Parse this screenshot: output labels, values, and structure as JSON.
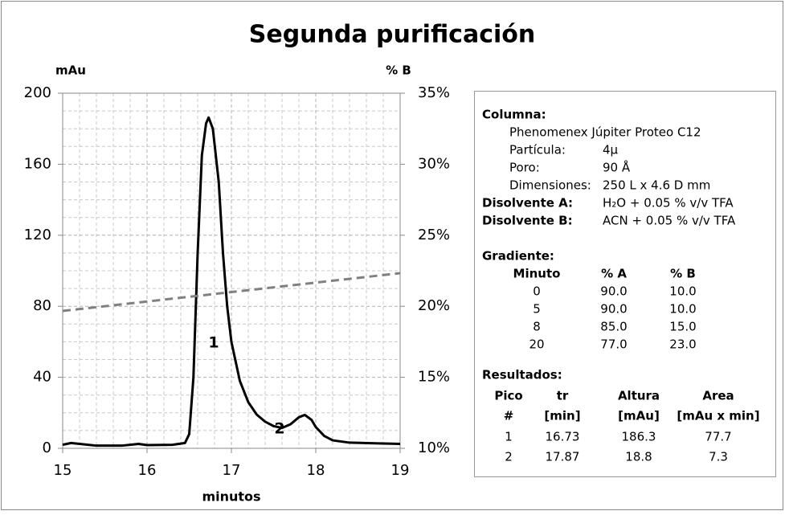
{
  "chart_data": {
    "type": "line",
    "title": "Segunda purificación",
    "y_label": "mAu",
    "y2_label": "% B",
    "x_label": "minutos",
    "xlim": [
      15,
      19
    ],
    "xticks": [
      15,
      16,
      17,
      18,
      19
    ],
    "ylim": [
      0,
      200
    ],
    "yticks": [
      0,
      40,
      80,
      120,
      160,
      200
    ],
    "y2lim": [
      10,
      35
    ],
    "y2ticks": [
      {
        "value": 10,
        "label": "10%"
      },
      {
        "value": 15,
        "label": "15%"
      },
      {
        "value": 20,
        "label": "20%"
      },
      {
        "value": 25,
        "label": "25%"
      },
      {
        "value": 30,
        "label": "30%"
      },
      {
        "value": 35,
        "label": "35%"
      }
    ],
    "grid": true,
    "series": [
      {
        "color": "#000000",
        "x": [
          15.0,
          15.1,
          15.2,
          15.4,
          15.7,
          15.9,
          16.0,
          16.3,
          16.45,
          16.5,
          16.55,
          16.6,
          16.65,
          16.7,
          16.73,
          16.78,
          16.85,
          16.9,
          16.95,
          17.0,
          17.1,
          17.2,
          17.3,
          17.4,
          17.5,
          17.6,
          17.7,
          17.8,
          17.87,
          17.95,
          18.0,
          18.1,
          18.2,
          18.4,
          18.7,
          19.0
        ],
        "values": [
          2,
          3,
          2.5,
          1.5,
          1.5,
          2.5,
          1.8,
          2,
          3,
          8,
          40,
          110,
          165,
          183,
          186.3,
          180,
          150,
          110,
          80,
          60,
          38,
          26,
          19,
          15,
          12.5,
          11.5,
          13.5,
          17.5,
          18.8,
          16,
          12,
          7,
          4.5,
          3.2,
          2.8,
          2.5
        ]
      },
      {
        "color": "#808080",
        "dashed": true,
        "axis": "y2",
        "x": [
          15,
          19
        ],
        "values": [
          19.67,
          22.33
        ]
      }
    ],
    "annotations": [
      "1",
      "2"
    ]
  },
  "info": {
    "column_label": "Columna:",
    "column_name": "Phenomenex Júpiter Proteo C12",
    "specs": [
      [
        "Partícula:",
        "4µ"
      ],
      [
        "Poro:",
        "90 Å"
      ],
      [
        "Dimensiones:",
        "250 L x 4.6 D mm"
      ]
    ],
    "solvents": [
      [
        "Disolvente A:",
        "H₂O + 0.05 % v/v TFA"
      ],
      [
        "Disolvente B:",
        "ACN + 0.05 % v/v TFA"
      ]
    ],
    "gradient_label": "Gradiente:",
    "gradient_header": [
      "Minuto",
      "% A",
      "% B"
    ],
    "gradient_rows": [
      [
        "0",
        "90.0",
        "10.0"
      ],
      [
        "5",
        "90.0",
        "10.0"
      ],
      [
        "8",
        "85.0",
        "15.0"
      ],
      [
        "20",
        "77.0",
        "23.0"
      ]
    ],
    "results_label": "Resultados:",
    "results_header": [
      [
        "Pico",
        "tr",
        "Altura",
        "Area"
      ],
      [
        "#",
        "[min]",
        "[mAu]",
        "[mAu x min]"
      ]
    ],
    "results_rows": [
      [
        "1",
        "16.73",
        "186.3",
        "77.7"
      ],
      [
        "2",
        "17.87",
        "18.8",
        "7.3"
      ]
    ]
  }
}
